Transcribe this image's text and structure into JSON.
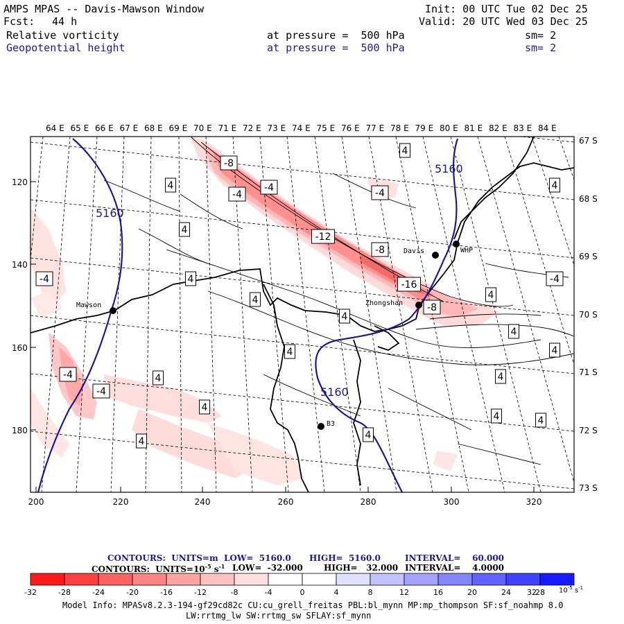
{
  "header": {
    "title": "AMPS MPAS -- Davis-Mawson Window",
    "fcst_label": "Fcst:",
    "fcst_value": "44 h",
    "init": "Init: 00 UTC Tue 02 Dec 25",
    "valid": "Valid: 20 UTC Wed 03 Dec 25",
    "field1": "Relative vorticity",
    "field1_pressure": "at pressure =  500 hPa",
    "field1_sm": "sm= 2",
    "field2": "Geopotential height",
    "field2_pressure": "at pressure =  500 hPa",
    "field2_sm": "sm= 2"
  },
  "map": {
    "lon_labels": [
      "64 E",
      "65 E",
      "66 E",
      "67 E",
      "68 E",
      "69 E",
      "70 E",
      "71 E",
      "72 E",
      "73 E",
      "74 E",
      "75 E",
      "76 E",
      "77 E",
      "78 E",
      "79 E",
      "80 E",
      "81 E",
      "82 E",
      "83 E",
      "84 E"
    ],
    "lat_labels": [
      "67 S",
      "68 S",
      "69 S",
      "70 S",
      "71 S",
      "72 S",
      "73 S"
    ],
    "y_ticks": [
      "120",
      "140",
      "160",
      "180"
    ],
    "x_ticks": [
      "200",
      "220",
      "240",
      "260",
      "280",
      "300",
      "320"
    ],
    "stations": {
      "mawson": "Mawson",
      "davis": "Davis",
      "whp": "WHP",
      "zhongshan": "Zhongshan",
      "b3": "B3"
    },
    "height_contour_label": "5160",
    "vort_labels": [
      "-8",
      "-4",
      "-4",
      "-12",
      "-8",
      "-16",
      "-8",
      "-4",
      "-4",
      "-4",
      "-4",
      "4",
      "4",
      "4",
      "4",
      "4",
      "4",
      "4",
      "4",
      "4",
      "4",
      "4",
      "4",
      "4",
      "4",
      "-4",
      "4",
      "4",
      "4",
      "4"
    ]
  },
  "captions": {
    "line1_prefix": "CONTOURS:  UNITS=m  LOW=  5160.0",
    "line1_high": "HIGH=  5160.0",
    "line1_interval": "INTERVAL=    60.000",
    "line2_prefix": "CONTOURS:  UNITS=10",
    "line2_exp": "-5",
    "line2_unit": "s",
    "line2_unit_exp": "-1",
    "line2_low": "LOW=  -32.000",
    "line2_high": "HIGH=   32.000",
    "line2_interval": "INTERVAL=    4.0000"
  },
  "colorbar": {
    "colors": [
      "#ff1a1a",
      "#ff4040",
      "#ff6262",
      "#ff8585",
      "#ffa3a3",
      "#ffc2c2",
      "#ffe0e0",
      "#ffffff",
      "#ffffff",
      "#e0e0ff",
      "#c2c2ff",
      "#a3a3ff",
      "#8585ff",
      "#6262ff",
      "#4040ff",
      "#1a1aff"
    ],
    "labels": [
      "-32",
      "-28",
      "-24",
      "-20",
      "-16",
      "-12",
      "-8",
      "-4",
      "0",
      "4",
      "8",
      "12",
      "16",
      "20",
      "24",
      "28",
      "32"
    ],
    "unit_base": "10",
    "unit_exp": "-5",
    "unit_s": "s",
    "unit_s_exp": "-1"
  },
  "model_info": {
    "line1": "Model Info: MPASv8.2.3-194-gf29cd82c CU:cu_grell_freitas PBL:bl_mynn MP:mp_thompson SF:sf_noahmp 8.0",
    "line2": "LW:rrtmg_lw SW:rrtmg_sw SFLAY:sf_mynn"
  }
}
